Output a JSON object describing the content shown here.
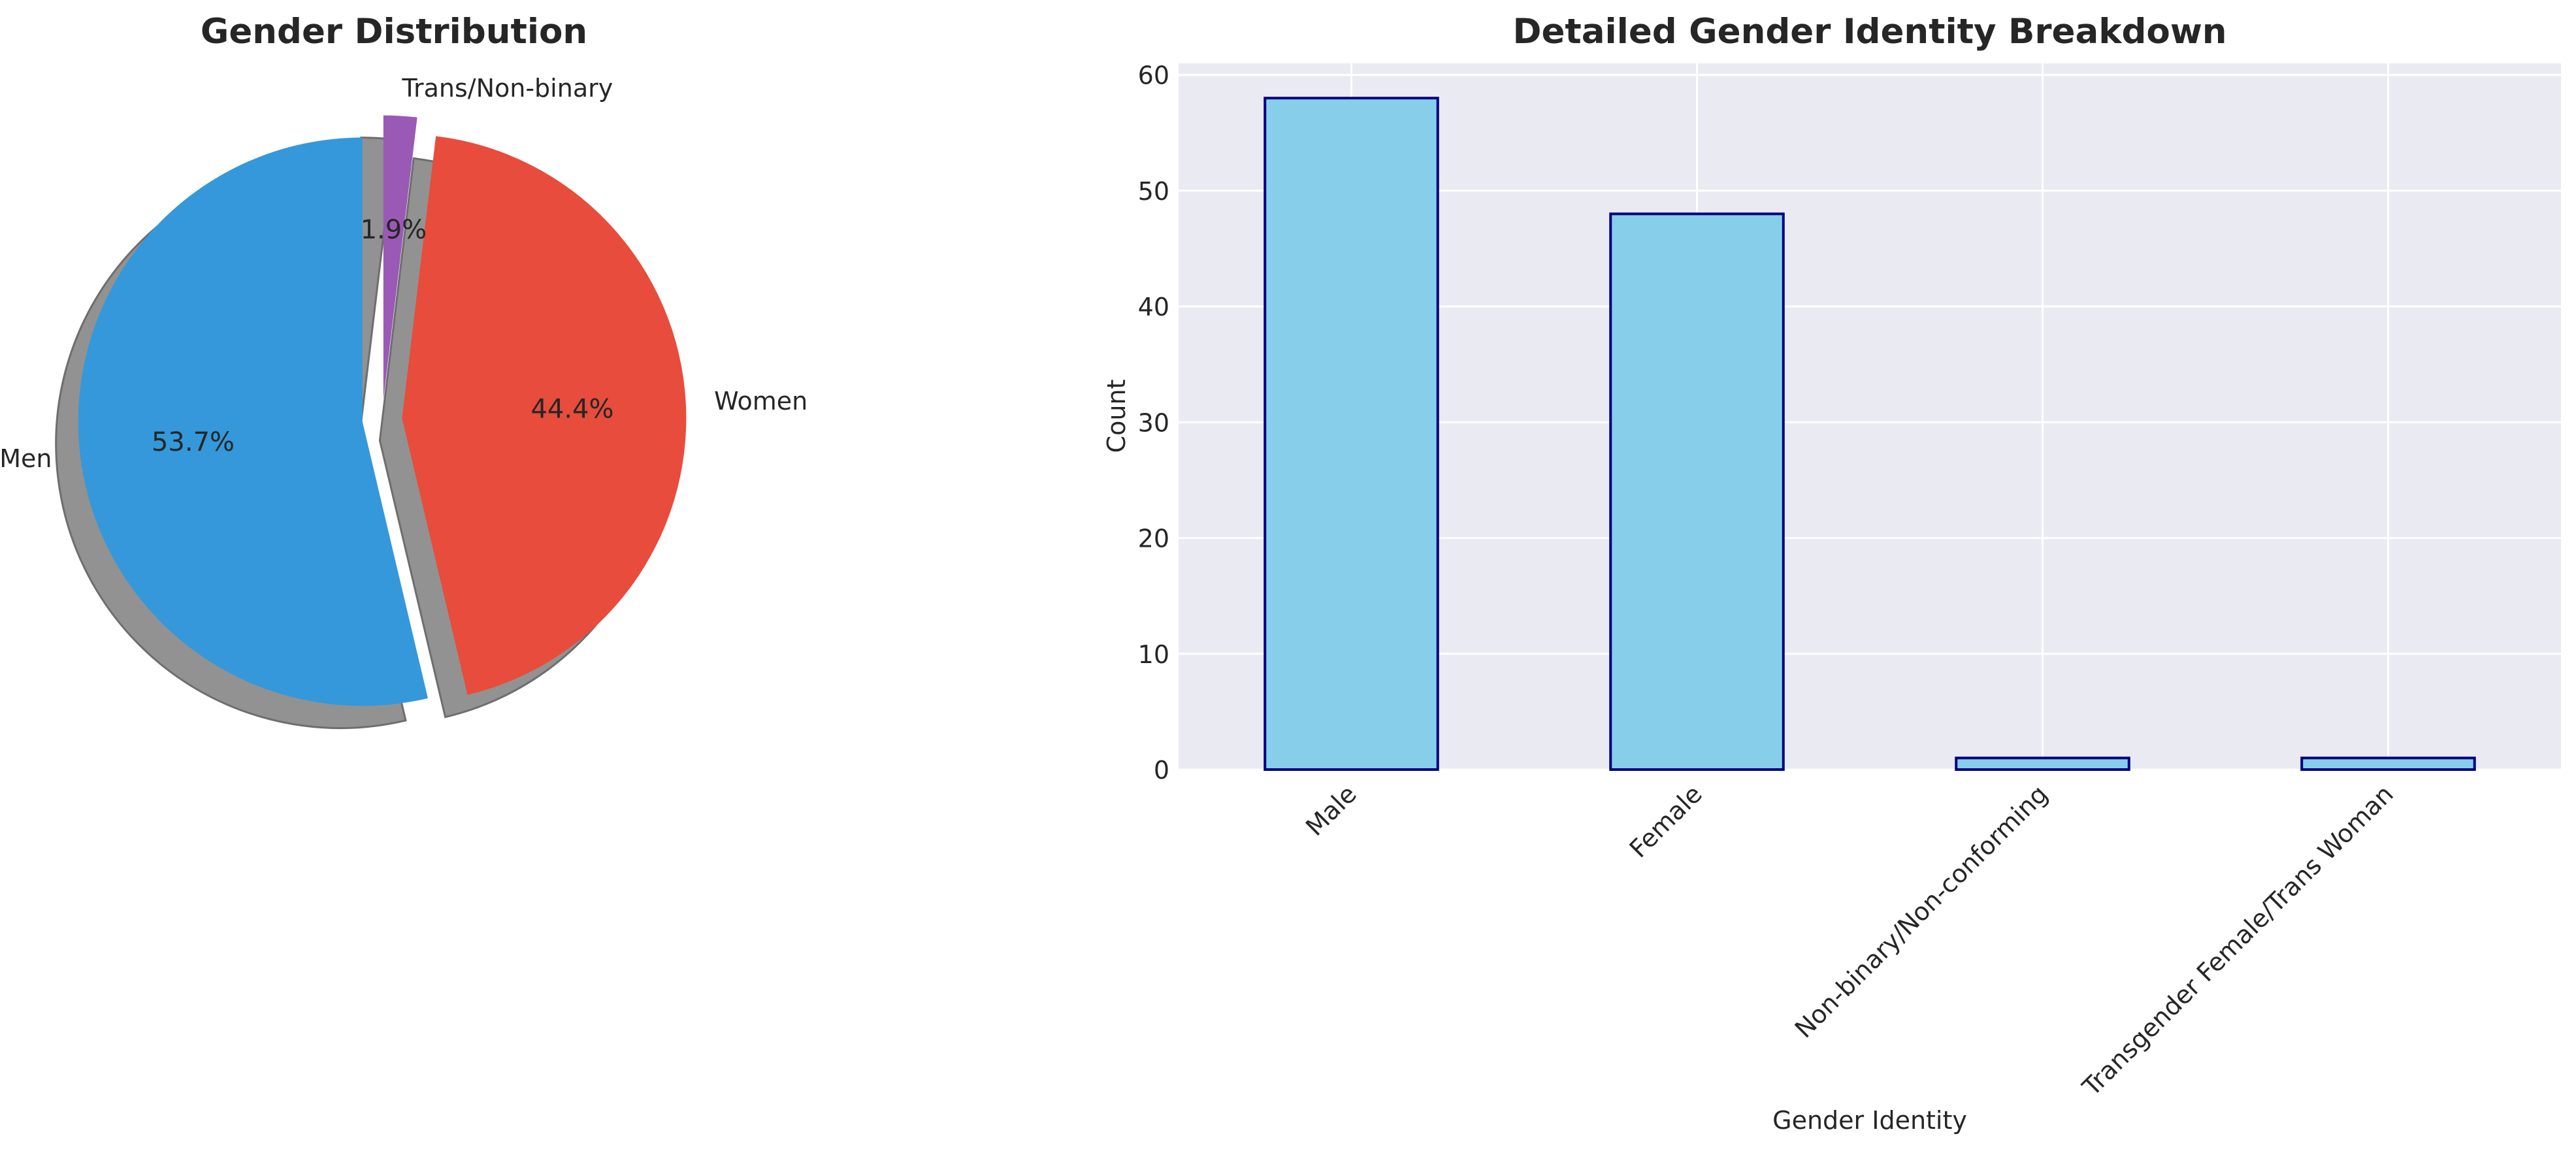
{
  "chart_data": [
    {
      "type": "pie",
      "title": "Gender Distribution",
      "labels": [
        "Men",
        "Women",
        "Trans/Non-binary"
      ],
      "values": [
        53.7,
        44.4,
        1.9
      ],
      "autopct": [
        "53.7%",
        "44.4%",
        "1.9%"
      ],
      "colors": [
        "#3498db",
        "#e74c3c",
        "#9b59b6"
      ],
      "exploded": true,
      "shadow": true,
      "start_angle_deg": 90
    },
    {
      "type": "bar",
      "title": "Detailed Gender Identity Breakdown",
      "categories": [
        "Male",
        "Female",
        "Non-binary/Non-conforming",
        "Transgender Female/Trans Woman"
      ],
      "values": [
        58,
        48,
        1,
        1
      ],
      "xlabel": "Gender Identity",
      "ylabel": "Count",
      "ylim": [
        0,
        61
      ],
      "yticks": [
        0,
        10,
        20,
        30,
        40,
        50,
        60
      ],
      "bar_color": "#87ceeb",
      "edge_color": "#000080",
      "background": "#eaeaf2",
      "grid": true
    }
  ]
}
